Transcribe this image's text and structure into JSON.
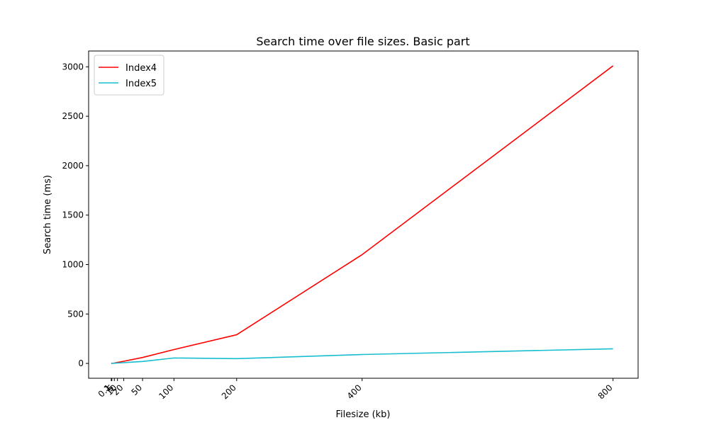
{
  "chart_data": {
    "type": "line",
    "title": "Search time over file sizes. Basic part",
    "xlabel": "Filesize (kb)",
    "ylabel": "Search time (ms)",
    "x": [
      0.1,
      1,
      5,
      10,
      20,
      50,
      100,
      200,
      400,
      800
    ],
    "xticks": [
      0.1,
      1,
      5,
      10,
      20,
      50,
      100,
      200,
      400,
      800
    ],
    "xtick_labels": [
      "0.1",
      "1",
      "5",
      "10",
      "20",
      "50",
      "100",
      "200",
      "400",
      "800"
    ],
    "yticks": [
      0,
      500,
      1000,
      1500,
      2000,
      2500,
      3000
    ],
    "xlim": [
      -36,
      840
    ],
    "ylim": [
      -150,
      3160
    ],
    "grid": false,
    "legend_position": "top-left",
    "series": [
      {
        "name": "Index4",
        "color": "#ff0000",
        "values": [
          0,
          1,
          4,
          10,
          22,
          60,
          140,
          290,
          1100,
          3010
        ]
      },
      {
        "name": "Index5",
        "color": "#17becf",
        "values": [
          0,
          1,
          2,
          4,
          8,
          20,
          55,
          48,
          90,
          148
        ]
      }
    ]
  }
}
